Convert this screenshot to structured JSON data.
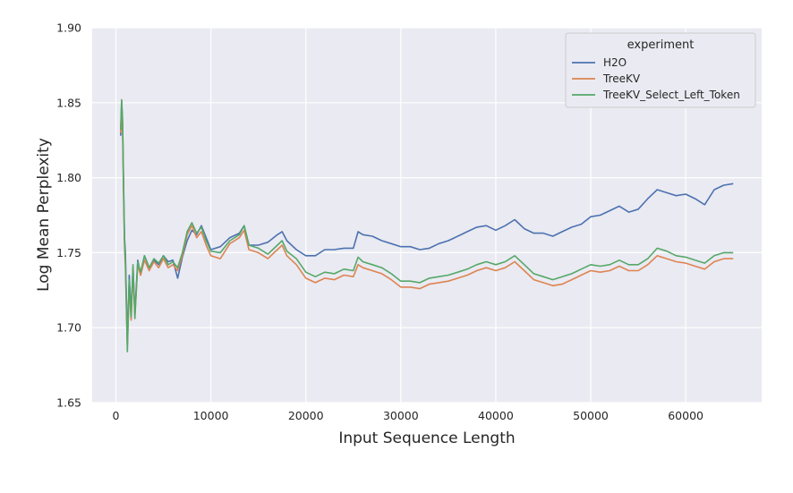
{
  "chart_data": {
    "type": "line",
    "xlabel": "Input Sequence Length",
    "ylabel": "Log Mean Perplexity",
    "xlim": [
      -2500,
      68000
    ],
    "ylim": [
      1.65,
      1.9
    ],
    "xticks": [
      0,
      10000,
      20000,
      30000,
      40000,
      50000,
      60000
    ],
    "xtick_labels": [
      "0",
      "10000",
      "20000",
      "30000",
      "40000",
      "50000",
      "60000"
    ],
    "yticks": [
      1.65,
      1.7,
      1.75,
      1.8,
      1.85,
      1.9
    ],
    "ytick_labels": [
      "1.65",
      "1.70",
      "1.75",
      "1.80",
      "1.85",
      "1.90"
    ],
    "grid": true,
    "background": "#eaeaf2",
    "legend": {
      "title": "experiment",
      "placement": "top-right",
      "entries": [
        "H2O",
        "TreeKV",
        "TreeKV_Select_Left_Token"
      ]
    },
    "series": [
      {
        "name": "H2O",
        "color": "#4c72b0",
        "x": [
          500,
          600,
          700,
          800,
          900,
          1000,
          1200,
          1400,
          1600,
          1800,
          2000,
          2300,
          2600,
          3000,
          3500,
          4000,
          4500,
          5000,
          5500,
          6000,
          6500,
          7000,
          7500,
          8000,
          8500,
          9000,
          9500,
          10000,
          11000,
          12000,
          13000,
          13500,
          14000,
          15000,
          16000,
          17000,
          17500,
          18000,
          19000,
          20000,
          21000,
          22000,
          23000,
          24000,
          25000,
          25500,
          26000,
          27000,
          28000,
          29000,
          30000,
          31000,
          32000,
          33000,
          34000,
          35000,
          36000,
          37000,
          38000,
          39000,
          40000,
          41000,
          42000,
          43000,
          44000,
          45000,
          46000,
          47000,
          48000,
          49000,
          50000,
          51000,
          52000,
          53000,
          54000,
          55000,
          56000,
          57000,
          58000,
          59000,
          60000,
          61000,
          62000,
          63000,
          64000,
          65000
        ],
        "y": [
          1.828,
          1.851,
          1.835,
          1.798,
          1.76,
          1.75,
          1.69,
          1.735,
          1.71,
          1.74,
          1.71,
          1.745,
          1.735,
          1.748,
          1.74,
          1.745,
          1.742,
          1.748,
          1.744,
          1.745,
          1.733,
          1.747,
          1.758,
          1.765,
          1.762,
          1.768,
          1.76,
          1.752,
          1.754,
          1.76,
          1.763,
          1.768,
          1.755,
          1.755,
          1.757,
          1.762,
          1.764,
          1.758,
          1.752,
          1.748,
          1.748,
          1.752,
          1.752,
          1.753,
          1.753,
          1.764,
          1.762,
          1.761,
          1.758,
          1.756,
          1.754,
          1.754,
          1.752,
          1.753,
          1.756,
          1.758,
          1.761,
          1.764,
          1.767,
          1.768,
          1.765,
          1.768,
          1.772,
          1.766,
          1.763,
          1.763,
          1.761,
          1.764,
          1.767,
          1.769,
          1.774,
          1.775,
          1.778,
          1.781,
          1.777,
          1.779,
          1.786,
          1.792,
          1.79,
          1.788,
          1.789,
          1.786,
          1.782,
          1.792,
          1.795,
          1.796
        ]
      },
      {
        "name": "TreeKV",
        "color": "#dd8452",
        "x": [
          500,
          600,
          700,
          800,
          900,
          1000,
          1200,
          1400,
          1600,
          1800,
          2000,
          2300,
          2600,
          3000,
          3500,
          4000,
          4500,
          5000,
          5500,
          6000,
          6500,
          7000,
          7500,
          8000,
          8500,
          9000,
          9500,
          10000,
          11000,
          12000,
          13000,
          13500,
          14000,
          15000,
          16000,
          17000,
          17500,
          18000,
          19000,
          20000,
          21000,
          22000,
          23000,
          24000,
          25000,
          25500,
          26000,
          27000,
          28000,
          29000,
          30000,
          31000,
          32000,
          33000,
          34000,
          35000,
          36000,
          37000,
          38000,
          39000,
          40000,
          41000,
          42000,
          43000,
          44000,
          45000,
          46000,
          47000,
          48000,
          49000,
          50000,
          51000,
          52000,
          53000,
          54000,
          55000,
          56000,
          57000,
          58000,
          59000,
          60000,
          61000,
          62000,
          63000,
          64000,
          65000
        ],
        "y": [
          1.83,
          1.848,
          1.83,
          1.79,
          1.755,
          1.74,
          1.688,
          1.728,
          1.705,
          1.738,
          1.708,
          1.742,
          1.735,
          1.745,
          1.738,
          1.744,
          1.74,
          1.746,
          1.74,
          1.742,
          1.738,
          1.748,
          1.762,
          1.768,
          1.76,
          1.764,
          1.755,
          1.748,
          1.746,
          1.756,
          1.76,
          1.765,
          1.752,
          1.75,
          1.746,
          1.752,
          1.755,
          1.748,
          1.742,
          1.733,
          1.73,
          1.733,
          1.732,
          1.735,
          1.734,
          1.742,
          1.74,
          1.738,
          1.736,
          1.732,
          1.727,
          1.727,
          1.726,
          1.729,
          1.73,
          1.731,
          1.733,
          1.735,
          1.738,
          1.74,
          1.738,
          1.74,
          1.744,
          1.738,
          1.732,
          1.73,
          1.728,
          1.729,
          1.732,
          1.735,
          1.738,
          1.737,
          1.738,
          1.741,
          1.738,
          1.738,
          1.742,
          1.748,
          1.746,
          1.744,
          1.743,
          1.741,
          1.739,
          1.744,
          1.746,
          1.746
        ]
      },
      {
        "name": "TreeKV_Select_Left_Token",
        "color": "#55a868",
        "x": [
          500,
          600,
          700,
          800,
          900,
          1000,
          1200,
          1400,
          1600,
          1800,
          2000,
          2300,
          2600,
          3000,
          3500,
          4000,
          4500,
          5000,
          5500,
          6000,
          6500,
          7000,
          7500,
          8000,
          8500,
          9000,
          9500,
          10000,
          11000,
          12000,
          13000,
          13500,
          14000,
          15000,
          16000,
          17000,
          17500,
          18000,
          19000,
          20000,
          21000,
          22000,
          23000,
          24000,
          25000,
          25500,
          26000,
          27000,
          28000,
          29000,
          30000,
          31000,
          32000,
          33000,
          34000,
          35000,
          36000,
          37000,
          38000,
          39000,
          40000,
          41000,
          42000,
          43000,
          44000,
          45000,
          46000,
          47000,
          48000,
          49000,
          50000,
          51000,
          52000,
          53000,
          54000,
          55000,
          56000,
          57000,
          58000,
          59000,
          60000,
          61000,
          62000,
          63000,
          64000,
          65000
        ],
        "y": [
          1.832,
          1.852,
          1.838,
          1.795,
          1.758,
          1.745,
          1.684,
          1.732,
          1.707,
          1.742,
          1.706,
          1.744,
          1.737,
          1.748,
          1.74,
          1.746,
          1.743,
          1.748,
          1.742,
          1.744,
          1.74,
          1.75,
          1.764,
          1.77,
          1.763,
          1.767,
          1.758,
          1.751,
          1.75,
          1.758,
          1.762,
          1.768,
          1.755,
          1.753,
          1.749,
          1.755,
          1.758,
          1.751,
          1.746,
          1.737,
          1.734,
          1.737,
          1.736,
          1.739,
          1.738,
          1.747,
          1.744,
          1.742,
          1.74,
          1.736,
          1.731,
          1.731,
          1.73,
          1.733,
          1.734,
          1.735,
          1.737,
          1.739,
          1.742,
          1.744,
          1.742,
          1.744,
          1.748,
          1.742,
          1.736,
          1.734,
          1.732,
          1.734,
          1.736,
          1.739,
          1.742,
          1.741,
          1.742,
          1.745,
          1.742,
          1.742,
          1.746,
          1.753,
          1.751,
          1.748,
          1.747,
          1.745,
          1.743,
          1.748,
          1.75,
          1.75
        ]
      }
    ]
  }
}
